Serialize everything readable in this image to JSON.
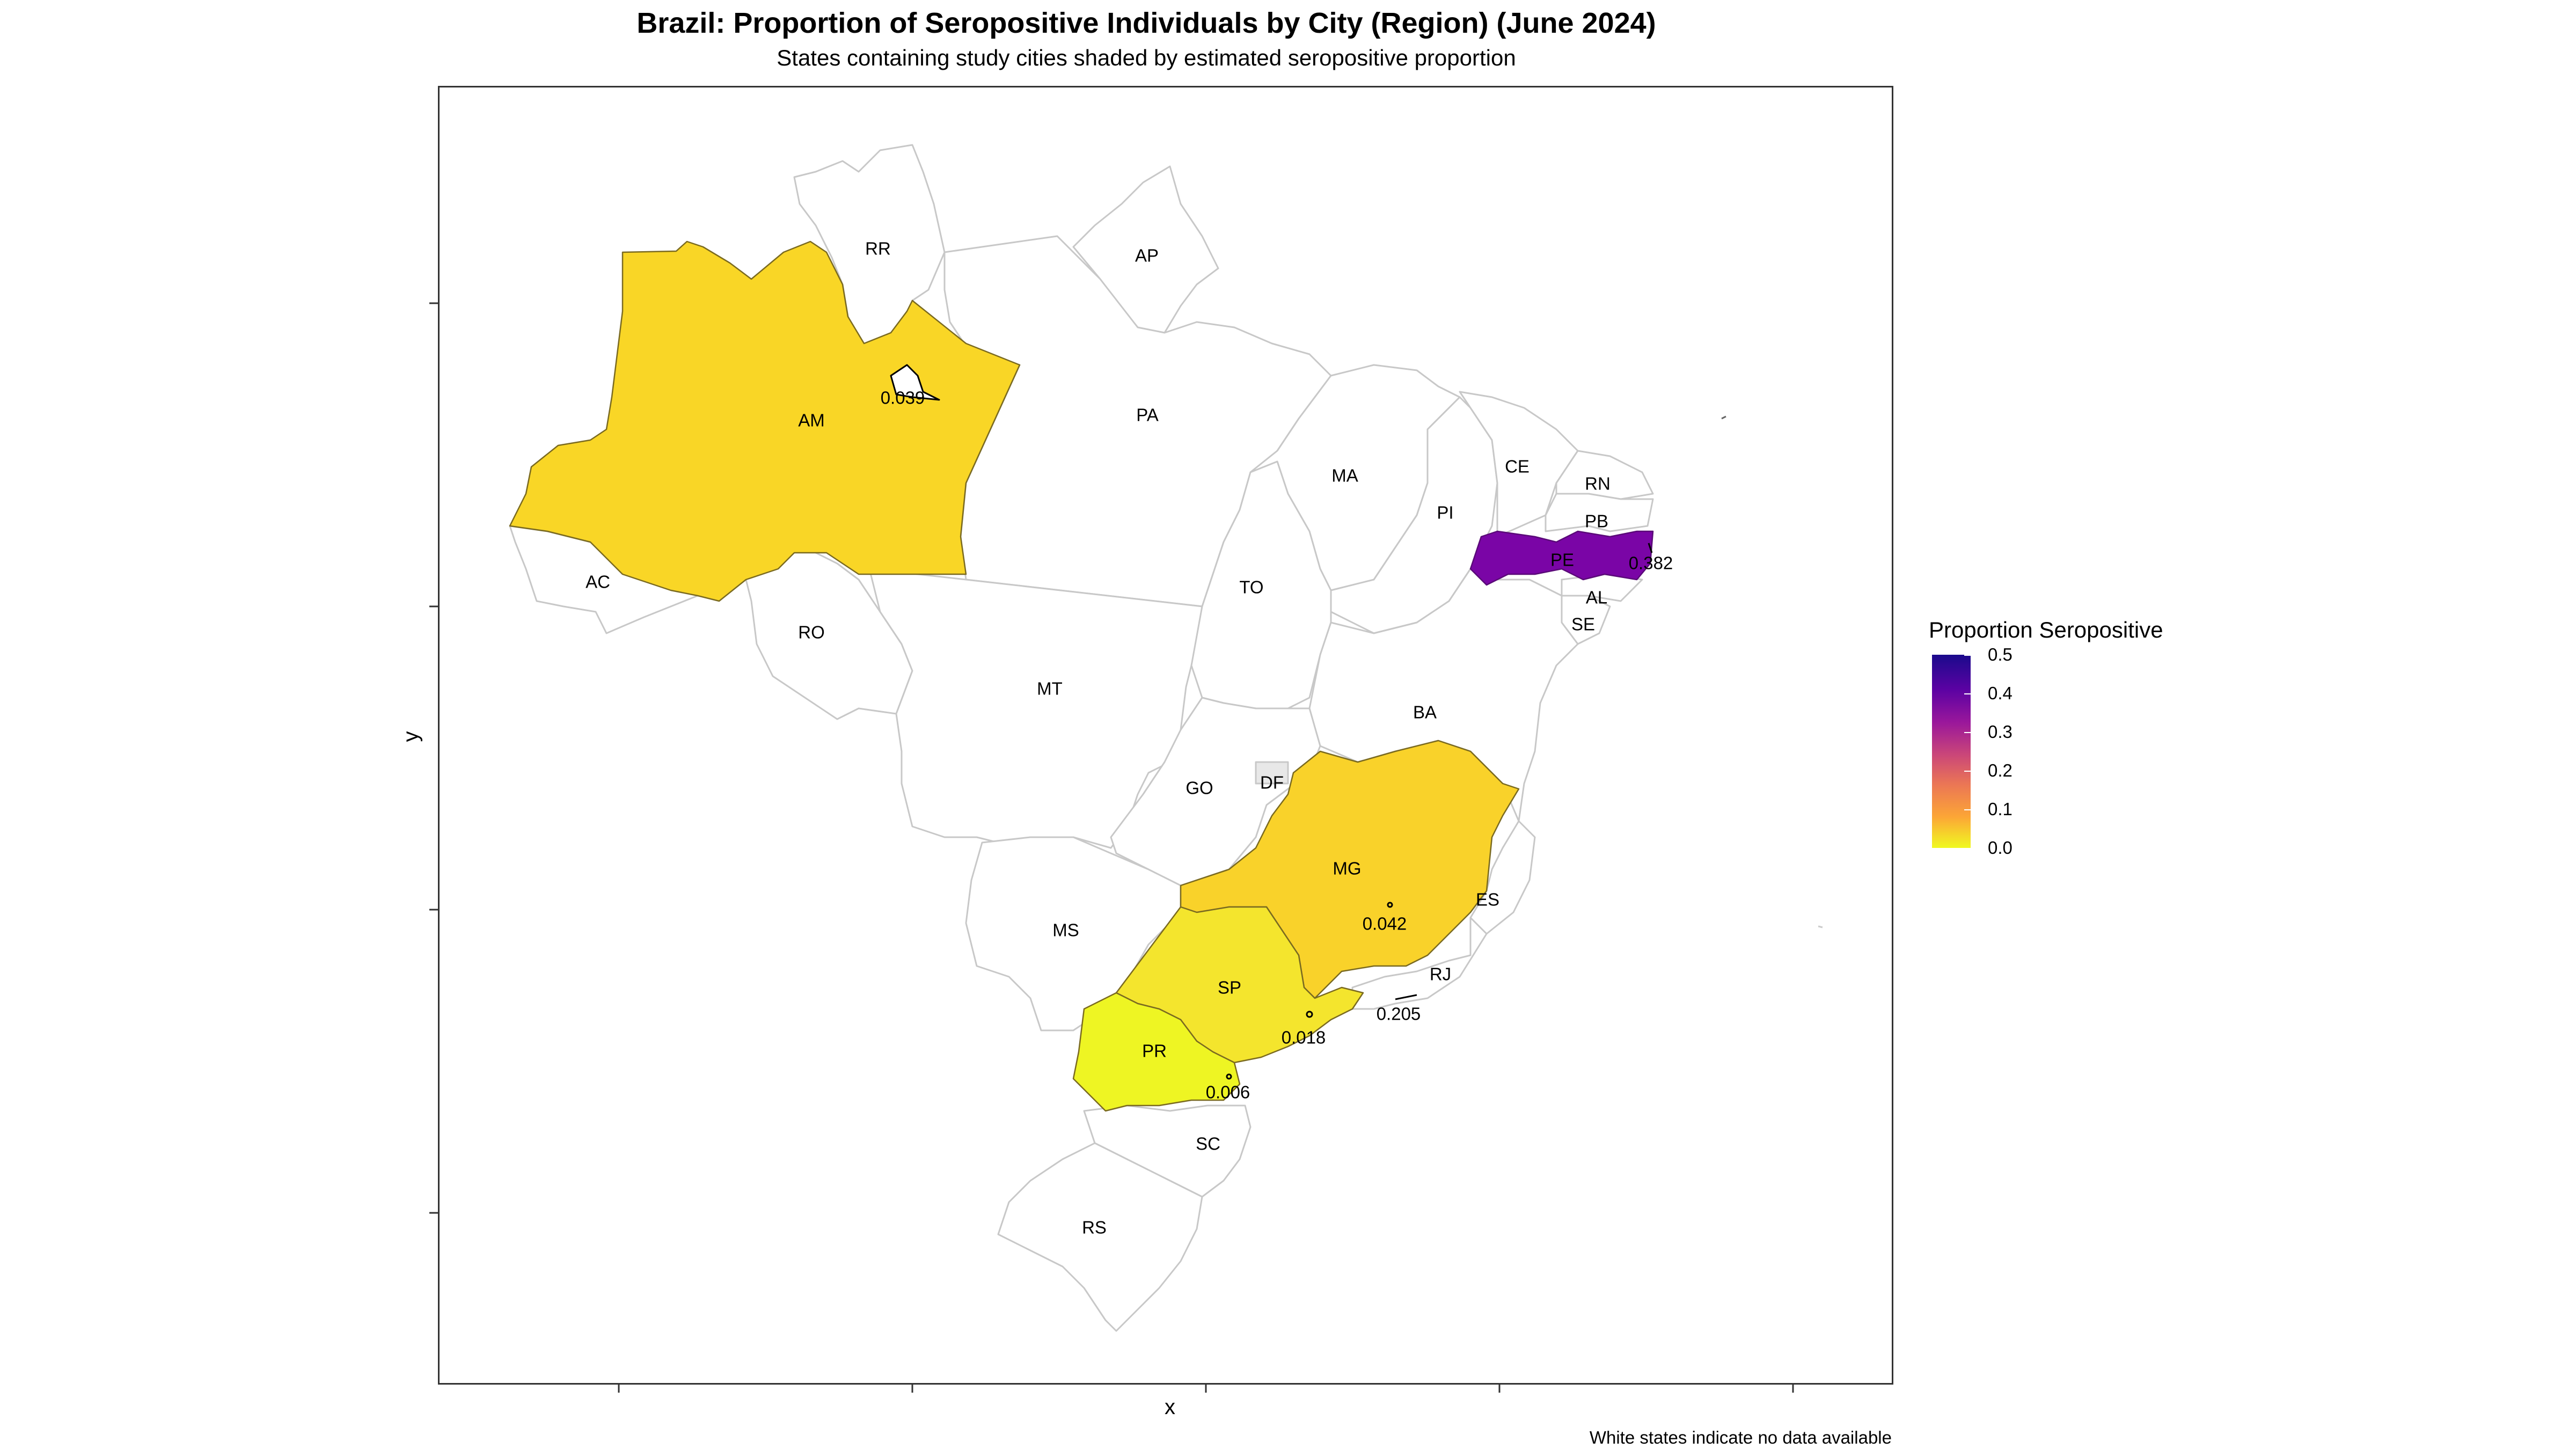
{
  "title": "Brazil: Proportion of Seropositive Individuals by City (Region) (June 2024)",
  "subtitle": "States containing study cities shaded by estimated seropositive proportion",
  "axes": {
    "xlabel": "x",
    "ylabel": "y"
  },
  "caption": "White states indicate no data available",
  "legend": {
    "title": "Proportion Seropositive",
    "ticks": [
      "0.5",
      "0.4",
      "0.3",
      "0.2",
      "0.1",
      "0.0"
    ],
    "range": [
      0.0,
      0.5
    ],
    "colors": [
      "#0d0887",
      "#6a00a8",
      "#b12a90",
      "#e16462",
      "#fca636",
      "#f0f921"
    ]
  },
  "states": [
    {
      "code": "RR"
    },
    {
      "code": "AP"
    },
    {
      "code": "AM"
    },
    {
      "code": "PA"
    },
    {
      "code": "MA"
    },
    {
      "code": "CE"
    },
    {
      "code": "RN"
    },
    {
      "code": "PB"
    },
    {
      "code": "PI"
    },
    {
      "code": "PE"
    },
    {
      "code": "AL"
    },
    {
      "code": "AC"
    },
    {
      "code": "TO"
    },
    {
      "code": "SE"
    },
    {
      "code": "RO"
    },
    {
      "code": "MT"
    },
    {
      "code": "BA"
    },
    {
      "code": "GO"
    },
    {
      "code": "DF"
    },
    {
      "code": "MG"
    },
    {
      "code": "ES"
    },
    {
      "code": "MS"
    },
    {
      "code": "SP"
    },
    {
      "code": "RJ"
    },
    {
      "code": "PR"
    },
    {
      "code": "SC"
    },
    {
      "code": "RS"
    }
  ],
  "cities": [
    {
      "state": "AM",
      "value": "0.039"
    },
    {
      "state": "PE",
      "value": "0.382"
    },
    {
      "state": "MG",
      "value": "0.042"
    },
    {
      "state": "RJ",
      "value": "0.205"
    },
    {
      "state": "SP",
      "value": "0.018"
    },
    {
      "state": "PR",
      "value": "0.006"
    }
  ],
  "shaded_colors": {
    "AM": "#f9d626",
    "PE": "#7a05a6",
    "MG": "#f9d22a",
    "SP": "#f4e52d",
    "PR": "#eef523"
  }
}
